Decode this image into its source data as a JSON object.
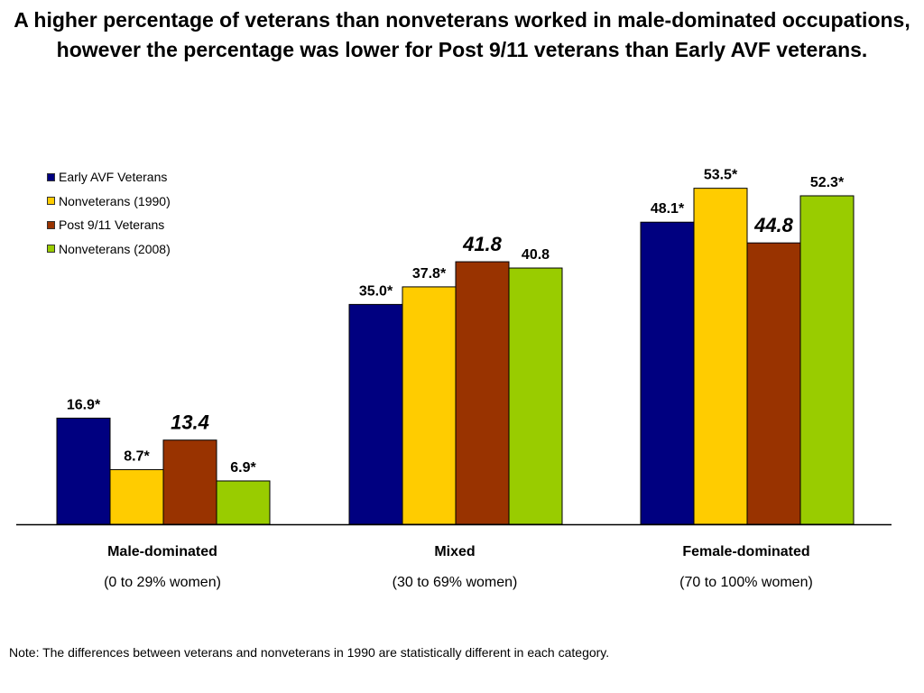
{
  "title": "A higher percentage of veterans than nonveterans worked in male-dominated occupations, however the percentage was lower for Post 9/11 veterans than Early AVF veterans.",
  "note": "Note: The differences between veterans and nonveterans in 1990 are statistically different in each category.",
  "chart_data": {
    "type": "bar",
    "categories": [
      "Male-dominated",
      "Mixed",
      "Female-dominated"
    ],
    "category_subtitles": [
      "(0 to 29% women)",
      "(30 to 69% women)",
      "(70 to 100% women)"
    ],
    "series": [
      {
        "name": "Early AVF Veterans",
        "color": "#000080",
        "values": [
          16.9,
          35.0,
          48.1
        ],
        "labels": [
          "16.9*",
          "35.0*",
          "48.1*"
        ],
        "label_style": "normal"
      },
      {
        "name": "Nonveterans (1990)",
        "color": "#ffcc00",
        "values": [
          8.7,
          37.8,
          53.5
        ],
        "labels": [
          "8.7*",
          "37.8*",
          "53.5*"
        ],
        "label_style": "normal"
      },
      {
        "name": "Post 9/11 Veterans",
        "color": "#993300",
        "values": [
          13.4,
          41.8,
          44.8
        ],
        "labels": [
          "13.4",
          "41.8",
          "44.8"
        ],
        "label_style": "emphasis"
      },
      {
        "name": "Nonveterans (2008)",
        "color": "#99cc00",
        "values": [
          6.9,
          40.8,
          52.3
        ],
        "labels": [
          "6.9*",
          "40.8",
          "52.3*"
        ],
        "label_style": "normal"
      }
    ],
    "ylim": [
      0,
      60
    ],
    "grid": false,
    "legend": "top-left"
  }
}
